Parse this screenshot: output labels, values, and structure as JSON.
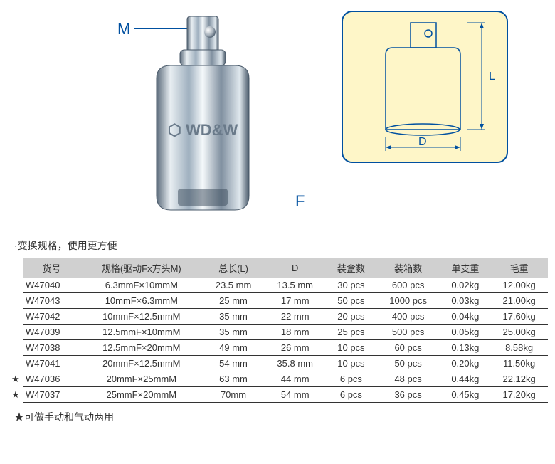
{
  "labels": {
    "m": "M",
    "f": "F",
    "d": "D",
    "l": "L"
  },
  "productText": "WD&W",
  "subtitle": "·变换规格，使用更方便",
  "footnote": "★可做手动和气动两用",
  "diagramColors": {
    "border": "#0050a0",
    "background": "#fef6c8",
    "line": "#0050a0"
  },
  "table": {
    "headers": [
      "货号",
      "规格(驱动Fx方头M)",
      "总长(L)",
      "D",
      "装盒数",
      "装箱数",
      "单支重",
      "毛重"
    ],
    "rows": [
      {
        "star": false,
        "pn": "W47040",
        "spec": "6.3mmF×10mmM",
        "l": "23.5 mm",
        "d": "13.5 mm",
        "box": "30 pcs",
        "case": "600 pcs",
        "unit": "0.02kg",
        "gross": "12.00kg"
      },
      {
        "star": false,
        "pn": "W47043",
        "spec": "10mmF×6.3mmM",
        "l": "25 mm",
        "d": "17 mm",
        "box": "50 pcs",
        "case": "1000 pcs",
        "unit": "0.03kg",
        "gross": "21.00kg"
      },
      {
        "star": false,
        "pn": "W47042",
        "spec": "10mmF×12.5mmM",
        "l": "35 mm",
        "d": "22 mm",
        "box": "20 pcs",
        "case": "400 pcs",
        "unit": "0.04kg",
        "gross": "17.60kg"
      },
      {
        "star": false,
        "pn": "W47039",
        "spec": "12.5mmF×10mmM",
        "l": "35 mm",
        "d": "18 mm",
        "box": "25 pcs",
        "case": "500 pcs",
        "unit": "0.05kg",
        "gross": "25.00kg"
      },
      {
        "star": false,
        "pn": "W47038",
        "spec": "12.5mmF×20mmM",
        "l": "49 mm",
        "d": "26 mm",
        "box": "10 pcs",
        "case": "60 pcs",
        "unit": "0.13kg",
        "gross": "8.58kg"
      },
      {
        "star": false,
        "pn": "W47041",
        "spec": "20mmF×12.5mmM",
        "l": "54 mm",
        "d": "35.8 mm",
        "box": "10 pcs",
        "case": "50 pcs",
        "unit": "0.20kg",
        "gross": "11.50kg"
      },
      {
        "star": true,
        "pn": "W47036",
        "spec": "20mmF×25mmM",
        "l": "63 mm",
        "d": "44 mm",
        "box": "6 pcs",
        "case": "48 pcs",
        "unit": "0.44kg",
        "gross": "22.12kg"
      },
      {
        "star": true,
        "pn": "W47037",
        "spec": "25mmF×20mmM",
        "l": "70mm",
        "d": "54 mm",
        "box": "6 pcs",
        "case": "36 pcs",
        "unit": "0.45kg",
        "gross": "17.20kg"
      }
    ]
  }
}
